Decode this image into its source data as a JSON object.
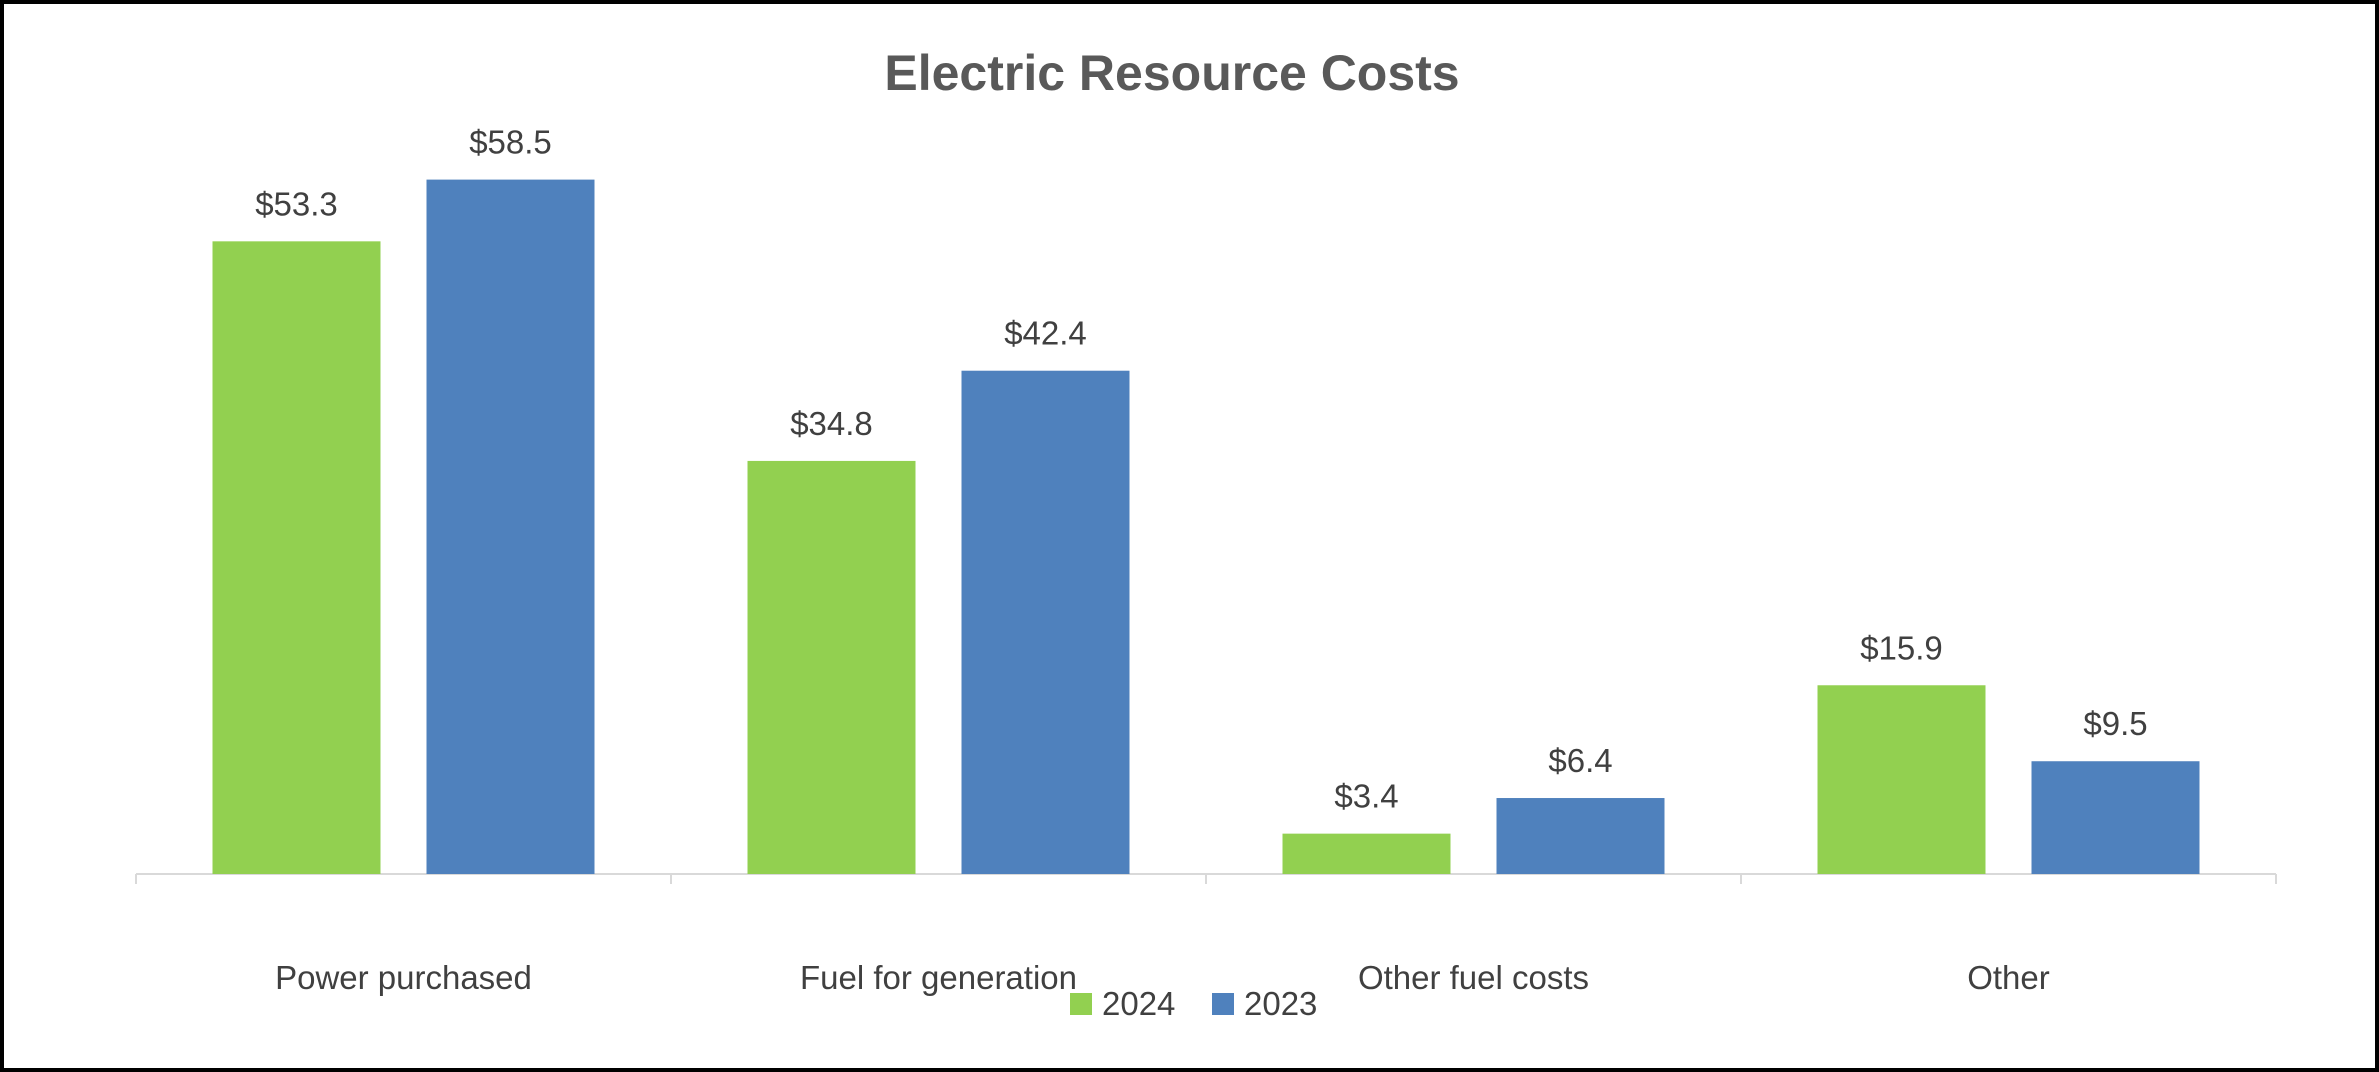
{
  "chart_data": {
    "type": "bar",
    "title": "Electric Resource Costs",
    "xlabel": "",
    "ylabel": "",
    "ylim": [
      0,
      60
    ],
    "grid": false,
    "legend_position": "bottom",
    "categories": [
      "Power purchased",
      "Fuel for generation",
      "Other fuel costs",
      "Other"
    ],
    "series": [
      {
        "name": "2024",
        "color": "#92D050",
        "values": [
          53.3,
          34.8,
          3.4,
          15.9
        ],
        "labels": [
          "$53.3",
          "$34.8",
          "$3.4",
          "$15.9"
        ]
      },
      {
        "name": "2023",
        "color": "#4F81BD",
        "values": [
          58.5,
          42.4,
          6.4,
          9.5
        ],
        "labels": [
          "$58.5",
          "$42.4",
          "$6.4",
          "$9.5"
        ]
      }
    ]
  }
}
